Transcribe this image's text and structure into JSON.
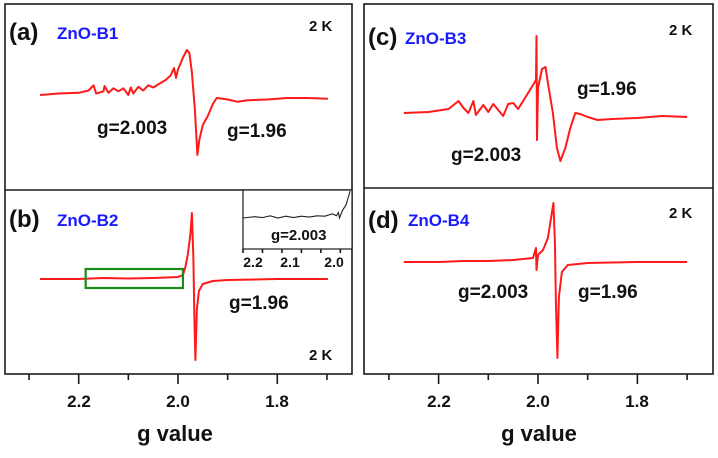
{
  "chart_data": [
    {
      "type": "line",
      "panel": "(a)",
      "title": "ZnO-B1",
      "temperature": "2 K",
      "xlabel": "g value",
      "ylabel": "",
      "xlim": [
        2.3,
        1.7
      ],
      "x_reversed": true,
      "xticks": [
        2.2,
        2.0,
        1.8
      ],
      "annotations": [
        "g=2.003",
        "g=1.96"
      ],
      "series": [
        {
          "name": "ZnO-B1",
          "color": "#ff1a1a",
          "points": [
            [
              2.278,
              0
            ],
            [
              2.24,
              0.2
            ],
            [
              2.2,
              0.3
            ],
            [
              2.18,
              0.6
            ],
            [
              2.17,
              1.3
            ],
            [
              2.165,
              0.2
            ],
            [
              2.15,
              0.5
            ],
            [
              2.148,
              1.2
            ],
            [
              2.14,
              0.3
            ],
            [
              2.13,
              0.9
            ],
            [
              2.12,
              0.5
            ],
            [
              2.11,
              0.9
            ],
            [
              2.1,
              0.0
            ],
            [
              2.095,
              1.0
            ],
            [
              2.09,
              0.2
            ],
            [
              2.08,
              1.1
            ],
            [
              2.07,
              0.6
            ],
            [
              2.06,
              1.3
            ],
            [
              2.05,
              1.0
            ],
            [
              2.04,
              1.4
            ],
            [
              2.025,
              2.0
            ],
            [
              2.015,
              2.6
            ],
            [
              2.008,
              3.6
            ],
            [
              2.004,
              2.3
            ],
            [
              2.0,
              3.4
            ],
            [
              1.99,
              5.0
            ],
            [
              1.982,
              6.0
            ],
            [
              1.977,
              5.6
            ],
            [
              1.972,
              3.0
            ],
            [
              1.966,
              -2.0
            ],
            [
              1.961,
              -8.0
            ],
            [
              1.957,
              -6.0
            ],
            [
              1.95,
              -4.0
            ],
            [
              1.94,
              -2.8
            ],
            [
              1.93,
              -1.2
            ],
            [
              1.922,
              -0.4
            ],
            [
              1.91,
              -0.5
            ],
            [
              1.9,
              -0.6
            ],
            [
              1.88,
              -0.9
            ],
            [
              1.86,
              -0.7
            ],
            [
              1.82,
              -0.6
            ],
            [
              1.78,
              -0.4
            ],
            [
              1.74,
              -0.4
            ],
            [
              1.698,
              -0.5
            ]
          ]
        }
      ]
    },
    {
      "type": "line",
      "panel": "(b)",
      "title": "ZnO-B2",
      "temperature": "2 K",
      "xlabel": "g value",
      "xlim": [
        2.3,
        1.7
      ],
      "x_reversed": true,
      "xticks": [
        2.2,
        2.0,
        1.8
      ],
      "annotations": [
        "g=1.96"
      ],
      "highlight_region_g": [
        2.186,
        1.99
      ],
      "series": [
        {
          "name": "ZnO-B2",
          "color": "#ff1a1a",
          "points": [
            [
              2.278,
              0
            ],
            [
              2.2,
              0
            ],
            [
              2.15,
              0.1
            ],
            [
              2.1,
              0.05
            ],
            [
              2.05,
              0.1
            ],
            [
              2.0,
              0.2
            ],
            [
              1.99,
              0.4
            ],
            [
              1.985,
              1.2
            ],
            [
              1.98,
              2.5
            ],
            [
              1.975,
              4.5
            ],
            [
              1.972,
              6.6
            ],
            [
              1.969,
              2.0
            ],
            [
              1.967,
              -4.0
            ],
            [
              1.965,
              -8.1
            ],
            [
              1.962,
              -3.0
            ],
            [
              1.958,
              -1.2
            ],
            [
              1.95,
              -0.5
            ],
            [
              1.93,
              -0.2
            ],
            [
              1.9,
              -0.1
            ],
            [
              1.8,
              0
            ],
            [
              1.698,
              0
            ]
          ]
        }
      ],
      "inset": {
        "xlim": [
          2.25,
          1.97
        ],
        "xticks": [
          2.2,
          2.1,
          2.0
        ],
        "annotation": "g=2.003",
        "points": [
          [
            2.25,
            0
          ],
          [
            2.22,
            0.3
          ],
          [
            2.2,
            0.1
          ],
          [
            2.18,
            0.5
          ],
          [
            2.16,
            0.0
          ],
          [
            2.14,
            0.4
          ],
          [
            2.12,
            0.1
          ],
          [
            2.1,
            0.4
          ],
          [
            2.08,
            0.2
          ],
          [
            2.06,
            0.5
          ],
          [
            2.04,
            0.4
          ],
          [
            2.02,
            0.9
          ],
          [
            2.01,
            0.5
          ],
          [
            2.005,
            1.2
          ],
          [
            2.002,
            0.0
          ],
          [
            1.995,
            1.6
          ],
          [
            1.985,
            3.0
          ],
          [
            1.975,
            6.0
          ]
        ]
      }
    },
    {
      "type": "line",
      "panel": "(c)",
      "title": "ZnO-B3",
      "temperature": "2 K",
      "xlabel": "g value",
      "xlim": [
        2.3,
        1.7
      ],
      "x_reversed": true,
      "xticks": [
        2.2,
        2.0,
        1.8
      ],
      "annotations": [
        "g=1.96",
        "g=2.003"
      ],
      "series": [
        {
          "name": "ZnO-B3",
          "color": "#ff1a1a",
          "points": [
            [
              2.27,
              0
            ],
            [
              2.22,
              0.1
            ],
            [
              2.18,
              0.4
            ],
            [
              2.16,
              1.2
            ],
            [
              2.15,
              0.5
            ],
            [
              2.14,
              0.0
            ],
            [
              2.13,
              1.2
            ],
            [
              2.125,
              -0.2
            ],
            [
              2.11,
              0.8
            ],
            [
              2.1,
              0.1
            ],
            [
              2.09,
              0.9
            ],
            [
              2.08,
              0.3
            ],
            [
              2.07,
              -0.3
            ],
            [
              2.06,
              0.9
            ],
            [
              2.05,
              1.0
            ],
            [
              2.04,
              0.4
            ],
            [
              2.03,
              1.2
            ],
            [
              2.02,
              2.0
            ],
            [
              2.01,
              2.8
            ],
            [
              2.004,
              3.3
            ],
            [
              2.003,
              7.7
            ],
            [
              2.002,
              -2.7
            ],
            [
              2.0,
              2.5
            ],
            [
              1.992,
              4.4
            ],
            [
              1.985,
              4.6
            ],
            [
              1.98,
              3.0
            ],
            [
              1.97,
              0.0
            ],
            [
              1.962,
              -3.5
            ],
            [
              1.955,
              -4.8
            ],
            [
              1.945,
              -3.5
            ],
            [
              1.935,
              -1.5
            ],
            [
              1.925,
              0.0
            ],
            [
              1.915,
              -0.1
            ],
            [
              1.9,
              -0.4
            ],
            [
              1.88,
              -0.7
            ],
            [
              1.85,
              -0.6
            ],
            [
              1.8,
              -0.5
            ],
            [
              1.75,
              -0.3
            ],
            [
              1.7,
              -0.4
            ]
          ]
        }
      ]
    },
    {
      "type": "line",
      "panel": "(d)",
      "title": "ZnO-B4",
      "temperature": "2 K",
      "xlabel": "g value",
      "xlim": [
        2.3,
        1.7
      ],
      "x_reversed": true,
      "xticks": [
        2.2,
        2.0,
        1.8
      ],
      "annotations": [
        "g=2.003",
        "g=1.96"
      ],
      "series": [
        {
          "name": "ZnO-B4",
          "color": "#ff1a1a",
          "points": [
            [
              2.27,
              0
            ],
            [
              2.2,
              0
            ],
            [
              2.15,
              0.1
            ],
            [
              2.1,
              0.1
            ],
            [
              2.05,
              0.2
            ],
            [
              2.01,
              0.4
            ],
            [
              2.004,
              1.4
            ],
            [
              2.003,
              -0.8
            ],
            [
              2.0,
              0.7
            ],
            [
              1.99,
              1.2
            ],
            [
              1.98,
              2.4
            ],
            [
              1.975,
              4.0
            ],
            [
              1.969,
              5.9
            ],
            [
              1.966,
              2.0
            ],
            [
              1.964,
              -4.0
            ],
            [
              1.961,
              -9.6
            ],
            [
              1.958,
              -3.5
            ],
            [
              1.952,
              -1.0
            ],
            [
              1.94,
              -0.3
            ],
            [
              1.9,
              -0.1
            ],
            [
              1.8,
              0
            ],
            [
              1.7,
              0
            ]
          ]
        }
      ]
    }
  ],
  "panels": {
    "a": {
      "letter": "(a)",
      "sample": "ZnO-B1",
      "temp": "2 K",
      "ann1": "g=2.003",
      "ann2": "g=1.96"
    },
    "b": {
      "letter": "(b)",
      "sample": "ZnO-B2",
      "temp": "2 K",
      "ann1": "g=1.96",
      "inset_ann": "g=2.003",
      "inset_ticks": [
        "2.2",
        "2.1",
        "2.0"
      ]
    },
    "c": {
      "letter": "(c)",
      "sample": "ZnO-B3",
      "temp": "2 K",
      "ann1": "g=1.96",
      "ann2": "g=2.003"
    },
    "d": {
      "letter": "(d)",
      "sample": "ZnO-B4",
      "temp": "2 K",
      "ann1": "g=2.003",
      "ann2": "g=1.96"
    }
  },
  "axis": {
    "xlabel": "g value",
    "ticklabels": [
      "2.2",
      "2.0",
      "1.8"
    ]
  }
}
